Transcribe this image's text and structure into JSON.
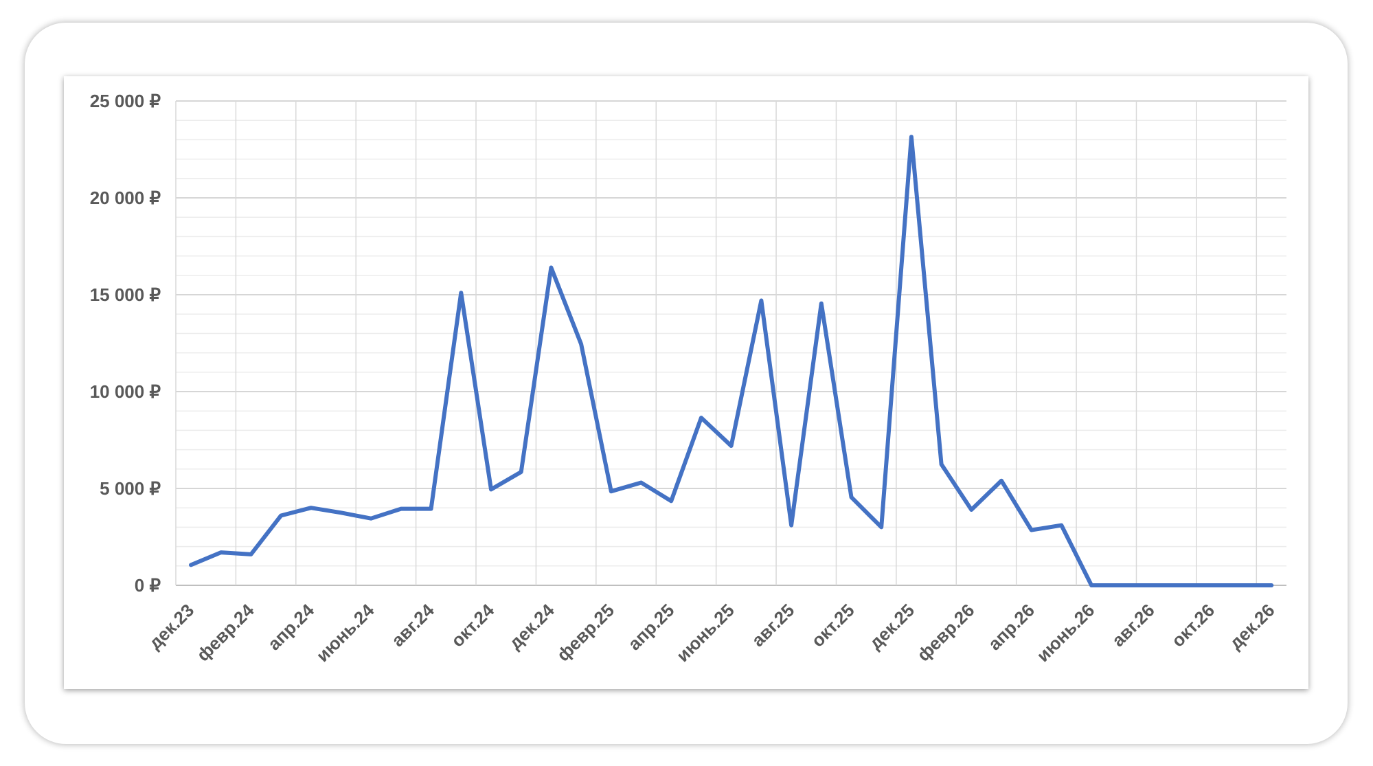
{
  "chart_data": {
    "type": "line",
    "title": "",
    "xlabel": "",
    "ylabel": "",
    "x_tick_labels": [
      "дек.23",
      "февр.24",
      "апр.24",
      "июнь.24",
      "авг.24",
      "окт.24",
      "дек.24",
      "февр.25",
      "апр.25",
      "июнь.25",
      "авг.25",
      "окт.25",
      "дек.25",
      "февр.26",
      "апр.26",
      "июнь.26",
      "авг.26",
      "окт.26",
      "дек.26"
    ],
    "y_tick_labels": [
      "0 ₽",
      "5 000 ₽",
      "10 000 ₽",
      "15 000 ₽",
      "20 000 ₽",
      "25 000 ₽"
    ],
    "y_ticks": [
      0,
      5000,
      10000,
      15000,
      20000,
      25000
    ],
    "ylim": [
      0,
      25000
    ],
    "grid": true,
    "legend": "none",
    "series": [
      {
        "color": "#4472C4",
        "x": [
          "2023-12",
          "2024-01",
          "2024-02",
          "2024-03",
          "2024-04",
          "2024-05",
          "2024-06",
          "2024-07",
          "2024-08",
          "2024-09",
          "2024-10",
          "2024-11",
          "2024-12",
          "2025-01",
          "2025-02",
          "2025-03",
          "2025-04",
          "2025-05",
          "2025-06",
          "2025-07",
          "2025-08",
          "2025-09",
          "2025-10",
          "2025-11",
          "2025-12",
          "2026-01",
          "2026-02",
          "2026-03",
          "2026-04",
          "2026-05",
          "2026-06",
          "2026-07",
          "2026-08",
          "2026-09",
          "2026-10",
          "2026-11",
          "2026-12"
        ],
        "values": [
          1050,
          1700,
          1600,
          3600,
          4000,
          3750,
          3450,
          3950,
          3950,
          15100,
          4950,
          5850,
          16400,
          12450,
          4850,
          5300,
          4350,
          8650,
          7200,
          14700,
          3100,
          14550,
          4550,
          3000,
          23150,
          6250,
          3900,
          5400,
          2850,
          3100,
          0,
          0,
          0,
          0,
          0,
          0,
          0
        ]
      }
    ]
  }
}
